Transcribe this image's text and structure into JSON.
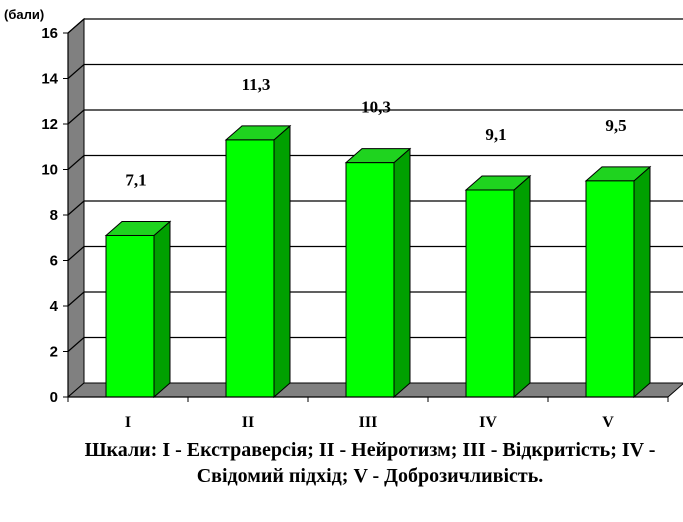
{
  "chart_data": {
    "type": "bar",
    "categories": [
      "I",
      "II",
      "III",
      "IV",
      "V"
    ],
    "values": [
      7.1,
      11.3,
      10.3,
      9.1,
      9.5
    ],
    "data_labels": [
      "7,1",
      "11,3",
      "10,3",
      "9,1",
      "9,5"
    ],
    "ylabel": "(бали)",
    "xlabel": "Шкали: І - Екстраверсія; ІІ - Нейротизм; ІІІ - Відкритість; IV - Свідомий підхід; V - Доброзичливість.",
    "ylim": [
      0,
      16
    ],
    "yticks": [
      0,
      2,
      4,
      6,
      8,
      10,
      12,
      14,
      16
    ],
    "grid": true,
    "style": "3d",
    "colors": {
      "bar_front": "#00ff00",
      "bar_side": "#00a000",
      "bar_top": "#1fd31f",
      "floor": "#808080",
      "grid": "#000000"
    }
  }
}
